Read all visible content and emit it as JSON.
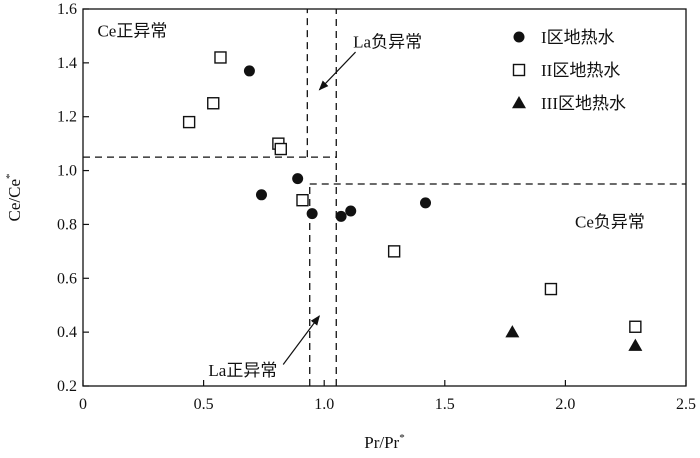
{
  "chart_data": {
    "type": "scatter",
    "xlabel": "Pr/Pr*",
    "ylabel": "Ce/Ce*",
    "xlim": [
      0,
      2.5
    ],
    "ylim": [
      0.2,
      1.6
    ],
    "x_ticks": [
      "0",
      "0.5",
      "1.0",
      "1.5",
      "2.0",
      "2.5"
    ],
    "y_ticks": [
      "0.2",
      "0.4",
      "0.6",
      "0.8",
      "1.0",
      "1.2",
      "1.4",
      "1.6"
    ],
    "grid": false,
    "legend_position": "top-right",
    "series": [
      {
        "name": "I区地热水",
        "marker": "filled-circle",
        "points": [
          {
            "x": 0.69,
            "y": 1.37
          },
          {
            "x": 0.74,
            "y": 0.91
          },
          {
            "x": 0.89,
            "y": 0.97
          },
          {
            "x": 0.95,
            "y": 0.84
          },
          {
            "x": 1.07,
            "y": 0.83
          },
          {
            "x": 1.11,
            "y": 0.85
          },
          {
            "x": 1.42,
            "y": 0.88
          }
        ]
      },
      {
        "name": "II区地热水",
        "marker": "open-square",
        "points": [
          {
            "x": 0.44,
            "y": 1.18
          },
          {
            "x": 0.54,
            "y": 1.25
          },
          {
            "x": 0.57,
            "y": 1.42
          },
          {
            "x": 0.81,
            "y": 1.1
          },
          {
            "x": 0.82,
            "y": 1.08
          },
          {
            "x": 0.91,
            "y": 0.89
          },
          {
            "x": 1.29,
            "y": 0.7
          },
          {
            "x": 1.94,
            "y": 0.56
          },
          {
            "x": 2.29,
            "y": 0.42
          }
        ]
      },
      {
        "name": "III区地热水",
        "marker": "filled-triangle",
        "points": [
          {
            "x": 1.78,
            "y": 0.4
          },
          {
            "x": 2.29,
            "y": 0.35
          }
        ]
      }
    ],
    "reference_lines": [
      {
        "orientation": "vertical",
        "value": 0.94,
        "from": 0.2,
        "to": 0.95
      },
      {
        "orientation": "vertical",
        "value": 1.05,
        "from": 0.2,
        "to": 1.6
      },
      {
        "orientation": "vertical",
        "value": 0.93,
        "from": 1.05,
        "to": 1.6
      },
      {
        "orientation": "horizontal",
        "value": 1.05,
        "from": 0,
        "to": 1.05
      },
      {
        "orientation": "horizontal",
        "value": 0.95,
        "from": 0.94,
        "to": 2.5
      }
    ],
    "annotations": [
      {
        "text": "Ce正异常",
        "x": 0.06,
        "y": 1.52
      },
      {
        "text": "La负异常",
        "x": 1.12,
        "y": 1.48
      },
      {
        "text": "Ce负异常",
        "x": 2.04,
        "y": 0.81
      },
      {
        "text": "La正异常",
        "x": 0.52,
        "y": 0.26
      }
    ],
    "arrows": [
      {
        "from": [
          1.13,
          1.44
        ],
        "to": [
          0.98,
          1.3
        ]
      },
      {
        "from": [
          0.83,
          0.28
        ],
        "to": [
          0.98,
          0.46
        ]
      }
    ]
  }
}
